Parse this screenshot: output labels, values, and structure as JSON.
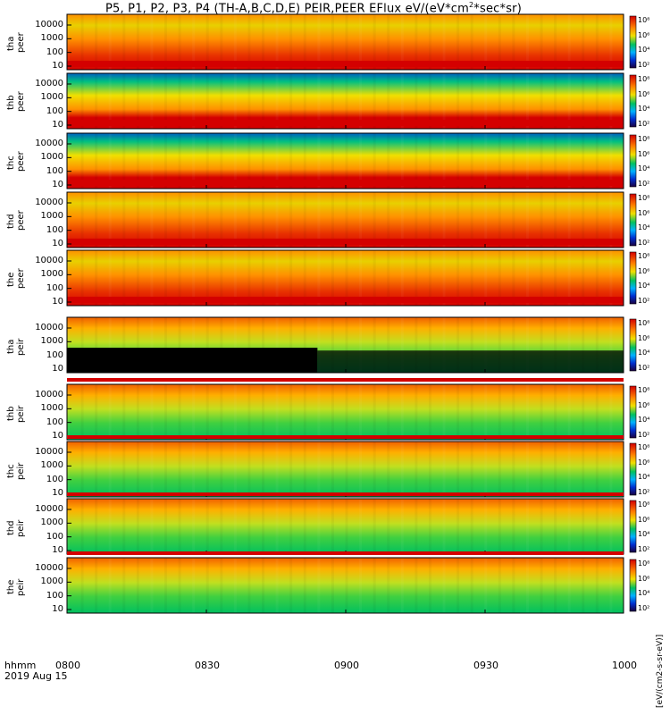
{
  "title": "P5, P1, P2, P3, P4 (TH-A,B,C,D,E) PEIR,PEER EFlux eV/(eV*cm",
  "title_sup": "2",
  "title_tail": "*sec*sr)",
  "time_label": "hhmm",
  "date_label": "2019 Aug 15",
  "colorbar_units": "[eV/(cm2-s-sr-eV)]",
  "colors": {
    "high": "#d40000",
    "mid": "#f0e000",
    "low": "#00c060",
    "min": "#0030d0",
    "fill": "#000000"
  },
  "chart_data": {
    "type": "heatmap",
    "x_ticks": [
      "0800",
      "0830",
      "0900",
      "0930",
      "1000"
    ],
    "x_range": [
      "0800",
      "1000"
    ],
    "y_ticks": [
      "10",
      "100",
      "1000",
      "10000"
    ],
    "y_scale": "log",
    "panels": [
      {
        "probe": "tha",
        "species": "peer",
        "colorbar_ticks": [
          "10²",
          "10⁴",
          "10⁶",
          "10⁸"
        ]
      },
      {
        "probe": "thb",
        "species": "peer",
        "colorbar_ticks": [
          "10²",
          "10⁴",
          "10⁶",
          "10⁸"
        ]
      },
      {
        "probe": "thc",
        "species": "peer",
        "colorbar_ticks": [
          "10²",
          "10⁴",
          "10⁶",
          "10⁸"
        ]
      },
      {
        "probe": "thd",
        "species": "peer",
        "colorbar_ticks": [
          "10²",
          "10⁴",
          "10⁶",
          "10⁸"
        ]
      },
      {
        "probe": "the",
        "species": "peer",
        "colorbar_ticks": [
          "10²",
          "10⁴",
          "10⁶",
          "10⁸"
        ]
      },
      {
        "probe": "tha",
        "species": "peir",
        "colorbar_ticks": [
          "10²",
          "10⁴",
          "10⁶",
          "10⁸"
        ]
      },
      {
        "probe": "thb",
        "species": "peir",
        "colorbar_ticks": [
          "10²",
          "10⁴",
          "10⁶",
          "10⁸"
        ]
      },
      {
        "probe": "thc",
        "species": "peir",
        "colorbar_ticks": [
          "10²",
          "10⁴",
          "10⁶",
          "10⁸"
        ]
      },
      {
        "probe": "thd",
        "species": "peir",
        "colorbar_ticks": [
          "10²",
          "10⁴",
          "10⁶",
          "10⁸"
        ]
      },
      {
        "probe": "the",
        "species": "peir",
        "colorbar_ticks": [
          "10²",
          "10⁴",
          "10⁶",
          "10⁸"
        ]
      }
    ]
  }
}
